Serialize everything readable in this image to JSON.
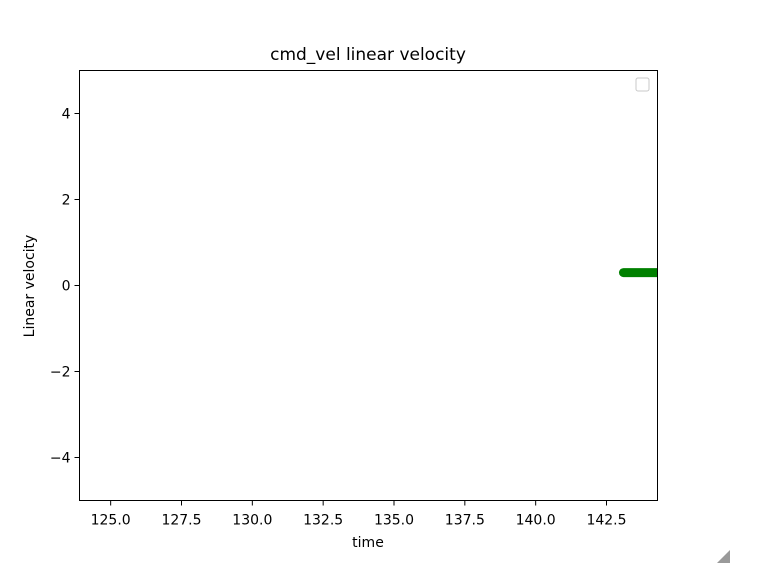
{
  "chart_data": {
    "type": "line",
    "title": "cmd_vel linear velocity",
    "xlabel": "time",
    "ylabel": "Linear velocity",
    "xlim": [
      123.9,
      144.3
    ],
    "ylim": [
      -5,
      5
    ],
    "xticks": [
      125.0,
      127.5,
      130.0,
      132.5,
      135.0,
      137.5,
      140.0,
      142.5
    ],
    "xtick_labels": [
      "125.0",
      "127.5",
      "130.0",
      "132.5",
      "135.0",
      "137.5",
      "140.0",
      "142.5"
    ],
    "yticks": [
      -4,
      -2,
      0,
      2,
      4
    ],
    "ytick_labels": [
      "−4",
      "−2",
      "0",
      "2",
      "4"
    ],
    "grid": false,
    "legend": {
      "placement": "top-right",
      "entries": []
    },
    "series": [
      {
        "color": "#008000",
        "x": [
          143.1,
          143.4,
          143.7,
          144.0,
          144.3
        ],
        "y": [
          0.3,
          0.3,
          0.3,
          0.3,
          0.3
        ]
      }
    ]
  },
  "colors": {
    "series": "#008000",
    "axes": "#000000",
    "background": "#ffffff"
  }
}
